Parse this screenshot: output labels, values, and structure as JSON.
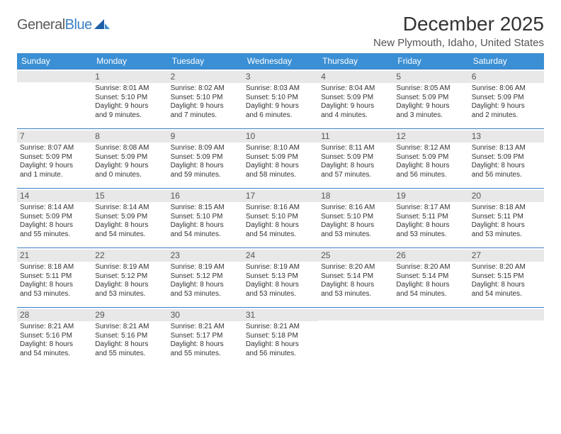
{
  "logo": {
    "word1": "General",
    "word2": "Blue"
  },
  "title": "December 2025",
  "location": "New Plymouth, Idaho, United States",
  "colors": {
    "headerBg": "#3b8fd4",
    "rowBorder": "#3b7fc4",
    "dayBg": "#e8e8e8",
    "text": "#333333",
    "logoGray": "#5a5a5a",
    "logoBlue": "#3b7fc4"
  },
  "dayHeaders": [
    "Sunday",
    "Monday",
    "Tuesday",
    "Wednesday",
    "Thursday",
    "Friday",
    "Saturday"
  ],
  "weeks": [
    [
      null,
      {
        "n": "1",
        "sr": "Sunrise: 8:01 AM",
        "ss": "Sunset: 5:10 PM",
        "d1": "Daylight: 9 hours",
        "d2": "and 9 minutes."
      },
      {
        "n": "2",
        "sr": "Sunrise: 8:02 AM",
        "ss": "Sunset: 5:10 PM",
        "d1": "Daylight: 9 hours",
        "d2": "and 7 minutes."
      },
      {
        "n": "3",
        "sr": "Sunrise: 8:03 AM",
        "ss": "Sunset: 5:10 PM",
        "d1": "Daylight: 9 hours",
        "d2": "and 6 minutes."
      },
      {
        "n": "4",
        "sr": "Sunrise: 8:04 AM",
        "ss": "Sunset: 5:09 PM",
        "d1": "Daylight: 9 hours",
        "d2": "and 4 minutes."
      },
      {
        "n": "5",
        "sr": "Sunrise: 8:05 AM",
        "ss": "Sunset: 5:09 PM",
        "d1": "Daylight: 9 hours",
        "d2": "and 3 minutes."
      },
      {
        "n": "6",
        "sr": "Sunrise: 8:06 AM",
        "ss": "Sunset: 5:09 PM",
        "d1": "Daylight: 9 hours",
        "d2": "and 2 minutes."
      }
    ],
    [
      {
        "n": "7",
        "sr": "Sunrise: 8:07 AM",
        "ss": "Sunset: 5:09 PM",
        "d1": "Daylight: 9 hours",
        "d2": "and 1 minute."
      },
      {
        "n": "8",
        "sr": "Sunrise: 8:08 AM",
        "ss": "Sunset: 5:09 PM",
        "d1": "Daylight: 9 hours",
        "d2": "and 0 minutes."
      },
      {
        "n": "9",
        "sr": "Sunrise: 8:09 AM",
        "ss": "Sunset: 5:09 PM",
        "d1": "Daylight: 8 hours",
        "d2": "and 59 minutes."
      },
      {
        "n": "10",
        "sr": "Sunrise: 8:10 AM",
        "ss": "Sunset: 5:09 PM",
        "d1": "Daylight: 8 hours",
        "d2": "and 58 minutes."
      },
      {
        "n": "11",
        "sr": "Sunrise: 8:11 AM",
        "ss": "Sunset: 5:09 PM",
        "d1": "Daylight: 8 hours",
        "d2": "and 57 minutes."
      },
      {
        "n": "12",
        "sr": "Sunrise: 8:12 AM",
        "ss": "Sunset: 5:09 PM",
        "d1": "Daylight: 8 hours",
        "d2": "and 56 minutes."
      },
      {
        "n": "13",
        "sr": "Sunrise: 8:13 AM",
        "ss": "Sunset: 5:09 PM",
        "d1": "Daylight: 8 hours",
        "d2": "and 56 minutes."
      }
    ],
    [
      {
        "n": "14",
        "sr": "Sunrise: 8:14 AM",
        "ss": "Sunset: 5:09 PM",
        "d1": "Daylight: 8 hours",
        "d2": "and 55 minutes."
      },
      {
        "n": "15",
        "sr": "Sunrise: 8:14 AM",
        "ss": "Sunset: 5:09 PM",
        "d1": "Daylight: 8 hours",
        "d2": "and 54 minutes."
      },
      {
        "n": "16",
        "sr": "Sunrise: 8:15 AM",
        "ss": "Sunset: 5:10 PM",
        "d1": "Daylight: 8 hours",
        "d2": "and 54 minutes."
      },
      {
        "n": "17",
        "sr": "Sunrise: 8:16 AM",
        "ss": "Sunset: 5:10 PM",
        "d1": "Daylight: 8 hours",
        "d2": "and 54 minutes."
      },
      {
        "n": "18",
        "sr": "Sunrise: 8:16 AM",
        "ss": "Sunset: 5:10 PM",
        "d1": "Daylight: 8 hours",
        "d2": "and 53 minutes."
      },
      {
        "n": "19",
        "sr": "Sunrise: 8:17 AM",
        "ss": "Sunset: 5:11 PM",
        "d1": "Daylight: 8 hours",
        "d2": "and 53 minutes."
      },
      {
        "n": "20",
        "sr": "Sunrise: 8:18 AM",
        "ss": "Sunset: 5:11 PM",
        "d1": "Daylight: 8 hours",
        "d2": "and 53 minutes."
      }
    ],
    [
      {
        "n": "21",
        "sr": "Sunrise: 8:18 AM",
        "ss": "Sunset: 5:11 PM",
        "d1": "Daylight: 8 hours",
        "d2": "and 53 minutes."
      },
      {
        "n": "22",
        "sr": "Sunrise: 8:19 AM",
        "ss": "Sunset: 5:12 PM",
        "d1": "Daylight: 8 hours",
        "d2": "and 53 minutes."
      },
      {
        "n": "23",
        "sr": "Sunrise: 8:19 AM",
        "ss": "Sunset: 5:12 PM",
        "d1": "Daylight: 8 hours",
        "d2": "and 53 minutes."
      },
      {
        "n": "24",
        "sr": "Sunrise: 8:19 AM",
        "ss": "Sunset: 5:13 PM",
        "d1": "Daylight: 8 hours",
        "d2": "and 53 minutes."
      },
      {
        "n": "25",
        "sr": "Sunrise: 8:20 AM",
        "ss": "Sunset: 5:14 PM",
        "d1": "Daylight: 8 hours",
        "d2": "and 53 minutes."
      },
      {
        "n": "26",
        "sr": "Sunrise: 8:20 AM",
        "ss": "Sunset: 5:14 PM",
        "d1": "Daylight: 8 hours",
        "d2": "and 54 minutes."
      },
      {
        "n": "27",
        "sr": "Sunrise: 8:20 AM",
        "ss": "Sunset: 5:15 PM",
        "d1": "Daylight: 8 hours",
        "d2": "and 54 minutes."
      }
    ],
    [
      {
        "n": "28",
        "sr": "Sunrise: 8:21 AM",
        "ss": "Sunset: 5:16 PM",
        "d1": "Daylight: 8 hours",
        "d2": "and 54 minutes."
      },
      {
        "n": "29",
        "sr": "Sunrise: 8:21 AM",
        "ss": "Sunset: 5:16 PM",
        "d1": "Daylight: 8 hours",
        "d2": "and 55 minutes."
      },
      {
        "n": "30",
        "sr": "Sunrise: 8:21 AM",
        "ss": "Sunset: 5:17 PM",
        "d1": "Daylight: 8 hours",
        "d2": "and 55 minutes."
      },
      {
        "n": "31",
        "sr": "Sunrise: 8:21 AM",
        "ss": "Sunset: 5:18 PM",
        "d1": "Daylight: 8 hours",
        "d2": "and 56 minutes."
      },
      null,
      null,
      null
    ]
  ]
}
